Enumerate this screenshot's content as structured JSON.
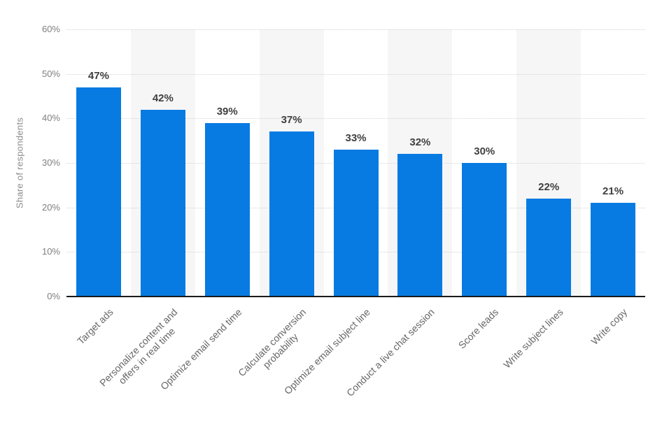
{
  "chart_data": {
    "type": "bar",
    "categories": [
      "Target ads",
      "Personalize content and\noffers in real time",
      "Optimize email send time",
      "Calculate conversion\nprobability",
      "Optimize email subject line",
      "Conduct a live chat session",
      "Score leads",
      "Write subject lines",
      "Write copy"
    ],
    "values": [
      47,
      42,
      39,
      37,
      33,
      32,
      30,
      22,
      21
    ],
    "value_labels": [
      "47%",
      "42%",
      "39%",
      "37%",
      "33%",
      "32%",
      "30%",
      "22%",
      "21%"
    ],
    "title": "",
    "xlabel": "",
    "ylabel": "Share of respondents",
    "ylim": [
      0,
      60
    ],
    "ytick_step": 10,
    "yticks": [
      "0%",
      "10%",
      "20%",
      "30%",
      "40%",
      "50%",
      "60%"
    ],
    "grid": "horizontal-dotted",
    "legend_position": "none",
    "band_pattern": "alternating-columns",
    "colors": {
      "bar": "#077be2",
      "band": "#f6f6f7",
      "gridline": "#d4d4d4",
      "axis_line": "#1a1a1a",
      "value_label": "#3f3f3f",
      "tick_label": "#7f7f7f",
      "category_label": "#666666",
      "axis_title": "#8c8c8c",
      "background": "#ffffff"
    }
  }
}
